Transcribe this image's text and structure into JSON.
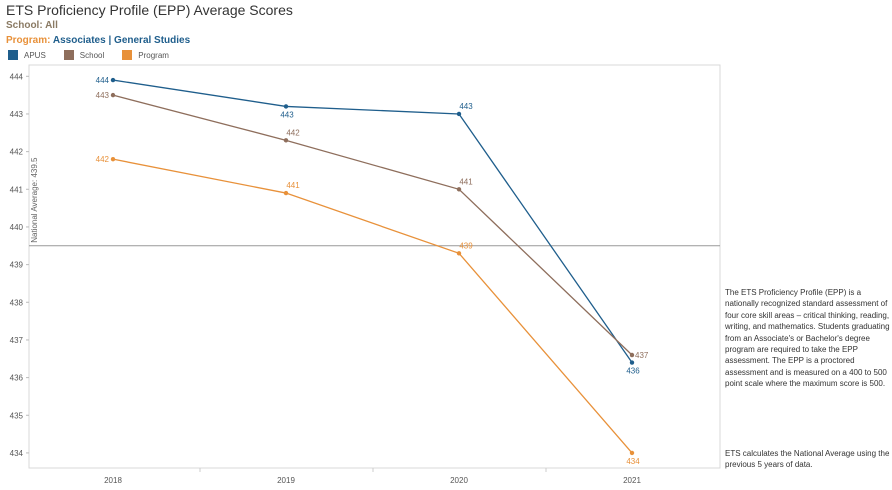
{
  "header": {
    "title": "ETS Proficiency Profile (EPP) Average Scores",
    "school_filter": "School: All",
    "program_label": "Program:",
    "program_value": "Associates | General Studies"
  },
  "colors": {
    "apus": "#1f5e8c",
    "school": "#8e6e5c",
    "program": "#e8913a",
    "avg_line": "#999999",
    "grid": "#d9d9d9"
  },
  "legend": [
    {
      "name": "APUS",
      "color": "#1f5e8c"
    },
    {
      "name": "School",
      "color": "#8e6e5c"
    },
    {
      "name": "Program",
      "color": "#e8913a"
    }
  ],
  "chart_data": {
    "type": "line",
    "title": "ETS Proficiency Profile (EPP) Average Scores",
    "categories": [
      "2018",
      "2019",
      "2020",
      "2021"
    ],
    "xlabel": "",
    "ylabel": "",
    "ylim": [
      433.6,
      444.3
    ],
    "yticks": [
      434,
      435,
      436,
      437,
      438,
      439,
      440,
      441,
      442,
      443,
      444
    ],
    "series": [
      {
        "name": "APUS",
        "color": "#1f5e8c",
        "values": [
          443.9,
          443.2,
          443.0,
          436.4
        ],
        "labels": [
          "444",
          "443",
          "443",
          "436"
        ],
        "label_pos": [
          "left",
          "below",
          "above",
          "below"
        ]
      },
      {
        "name": "School",
        "color": "#8e6e5c",
        "values": [
          443.5,
          442.3,
          441.0,
          436.6
        ],
        "labels": [
          "443",
          "442",
          "441",
          "437"
        ],
        "label_pos": [
          "left",
          "above",
          "above",
          "right"
        ]
      },
      {
        "name": "Program",
        "color": "#e8913a",
        "values": [
          441.8,
          440.9,
          439.3,
          434.0
        ],
        "labels": [
          "442",
          "441",
          "439",
          "434"
        ],
        "label_pos": [
          "left",
          "above",
          "above",
          "below"
        ]
      }
    ],
    "reference_line": {
      "value": 439.5,
      "label": "National Average: 439.5"
    }
  },
  "side_text": {
    "description": "The ETS Proficiency Profile (EPP) is a nationally recognized standard assessment of four core skill areas – critical thinking, reading, writing, and mathematics.  Students graduating from an Associate's or Bachelor's degree program are required to take the EPP assessment.  The EPP is a proctored assessment and is measured on a 400 to 500 point scale where the maximum score is 500.",
    "note": "ETS calculates the National Average using the previous 5 years of data."
  }
}
